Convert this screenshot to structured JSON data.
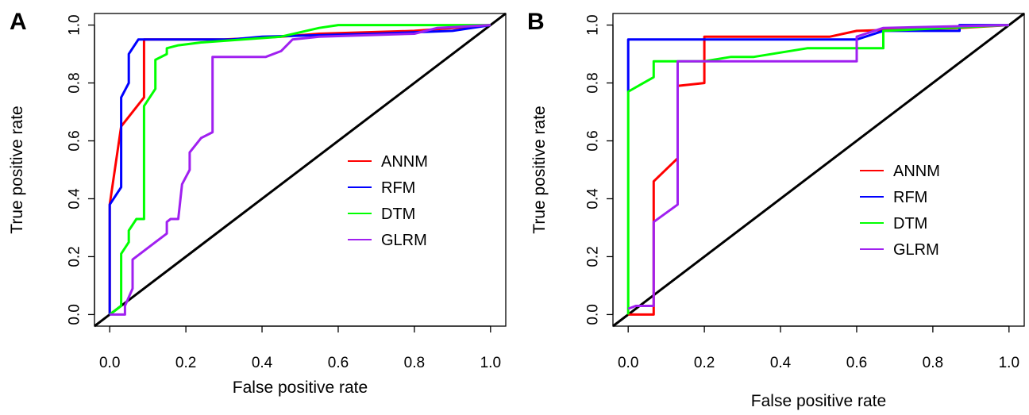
{
  "chart_data": [
    {
      "panel": "A",
      "type": "line",
      "xlabel": "False positive rate",
      "ylabel": "True positive rate",
      "xlim": [
        -0.04,
        1.04
      ],
      "ylim": [
        -0.04,
        1.04
      ],
      "xticks": [
        "0.0",
        "0.2",
        "0.4",
        "0.6",
        "0.8",
        "1.0"
      ],
      "yticks": [
        "0.0",
        "0.2",
        "0.4",
        "0.6",
        "0.8",
        "1.0"
      ],
      "grid": false,
      "legend": "right",
      "diagonal": true,
      "series": [
        {
          "name": "ANNM",
          "color": "#ff0000",
          "points": [
            [
              0,
              0
            ],
            [
              0,
              0.38
            ],
            [
              0.03,
              0.65
            ],
            [
              0.09,
              0.75
            ],
            [
              0.09,
              0.95
            ],
            [
              0.3,
              0.95
            ],
            [
              0.45,
              0.96
            ],
            [
              0.55,
              0.97
            ],
            [
              0.8,
              0.98
            ],
            [
              1,
              1
            ]
          ]
        },
        {
          "name": "RFM",
          "color": "#0000ff",
          "points": [
            [
              0,
              0
            ],
            [
              0,
              0.38
            ],
            [
              0.03,
              0.44
            ],
            [
              0.03,
              0.75
            ],
            [
              0.05,
              0.8
            ],
            [
              0.05,
              0.9
            ],
            [
              0.075,
              0.95
            ],
            [
              0.32,
              0.95
            ],
            [
              0.4,
              0.96
            ],
            [
              0.7,
              0.97
            ],
            [
              0.9,
              0.98
            ],
            [
              1,
              1
            ]
          ]
        },
        {
          "name": "DTM",
          "color": "#00ff00",
          "points": [
            [
              0,
              0
            ],
            [
              0.03,
              0.03
            ],
            [
              0.03,
              0.21
            ],
            [
              0.05,
              0.25
            ],
            [
              0.05,
              0.29
            ],
            [
              0.07,
              0.33
            ],
            [
              0.09,
              0.33
            ],
            [
              0.09,
              0.72
            ],
            [
              0.12,
              0.78
            ],
            [
              0.12,
              0.88
            ],
            [
              0.15,
              0.9
            ],
            [
              0.15,
              0.92
            ],
            [
              0.18,
              0.93
            ],
            [
              0.24,
              0.94
            ],
            [
              0.45,
              0.96
            ],
            [
              0.55,
              0.99
            ],
            [
              0.6,
              1
            ],
            [
              1,
              1
            ]
          ]
        },
        {
          "name": "GLRM",
          "color": "#a020f0",
          "points": [
            [
              0,
              0
            ],
            [
              0.02,
              0
            ],
            [
              0.04,
              0
            ],
            [
              0.04,
              0.03
            ],
            [
              0.06,
              0.09
            ],
            [
              0.06,
              0.19
            ],
            [
              0.12,
              0.25
            ],
            [
              0.15,
              0.28
            ],
            [
              0.15,
              0.32
            ],
            [
              0.16,
              0.33
            ],
            [
              0.18,
              0.33
            ],
            [
              0.19,
              0.45
            ],
            [
              0.21,
              0.5
            ],
            [
              0.21,
              0.56
            ],
            [
              0.24,
              0.61
            ],
            [
              0.27,
              0.63
            ],
            [
              0.27,
              0.89
            ],
            [
              0.41,
              0.89
            ],
            [
              0.45,
              0.91
            ],
            [
              0.48,
              0.95
            ],
            [
              0.55,
              0.96
            ],
            [
              0.8,
              0.97
            ],
            [
              0.86,
              0.99
            ],
            [
              1,
              1
            ]
          ]
        }
      ]
    },
    {
      "panel": "B",
      "type": "line",
      "xlabel": "False positive rate",
      "ylabel": "True positive rate",
      "xlim": [
        -0.04,
        1.04
      ],
      "ylim": [
        -0.04,
        1.04
      ],
      "xticks": [
        "0.0",
        "0.2",
        "0.4",
        "0.6",
        "0.8",
        "1.0"
      ],
      "yticks": [
        "0.0",
        "0.2",
        "0.4",
        "0.6",
        "0.8",
        "1.0"
      ],
      "grid": false,
      "legend": "right",
      "diagonal": true,
      "series": [
        {
          "name": "ANNM",
          "color": "#ff0000",
          "points": [
            [
              0,
              0
            ],
            [
              0.067,
              0
            ],
            [
              0.067,
              0.46
            ],
            [
              0.13,
              0.54
            ],
            [
              0.13,
              0.79
            ],
            [
              0.2,
              0.8
            ],
            [
              0.2,
              0.96
            ],
            [
              0.53,
              0.96
            ],
            [
              0.6,
              0.98
            ],
            [
              0.87,
              0.99
            ],
            [
              1,
              1
            ]
          ]
        },
        {
          "name": "RFM",
          "color": "#0000ff",
          "points": [
            [
              0,
              0.77
            ],
            [
              0,
              0.95
            ],
            [
              0.6,
              0.95
            ],
            [
              0.67,
              0.98
            ],
            [
              0.87,
              0.98
            ],
            [
              0.87,
              1
            ],
            [
              1,
              1
            ]
          ]
        },
        {
          "name": "DTM",
          "color": "#00ff00",
          "points": [
            [
              0,
              0
            ],
            [
              0,
              0.77
            ],
            [
              0.04,
              0.8
            ],
            [
              0.067,
              0.82
            ],
            [
              0.067,
              0.875
            ],
            [
              0.2,
              0.875
            ],
            [
              0.27,
              0.89
            ],
            [
              0.33,
              0.89
            ],
            [
              0.47,
              0.92
            ],
            [
              0.67,
              0.92
            ],
            [
              0.67,
              0.98
            ],
            [
              1,
              1
            ]
          ]
        },
        {
          "name": "GLRM",
          "color": "#a020f0",
          "points": [
            [
              0,
              0.02
            ],
            [
              0.02,
              0.03
            ],
            [
              0.067,
              0.03
            ],
            [
              0.067,
              0.32
            ],
            [
              0.13,
              0.38
            ],
            [
              0.13,
              0.875
            ],
            [
              0.6,
              0.875
            ],
            [
              0.6,
              0.96
            ],
            [
              0.67,
              0.99
            ],
            [
              1,
              1
            ]
          ]
        }
      ]
    }
  ]
}
